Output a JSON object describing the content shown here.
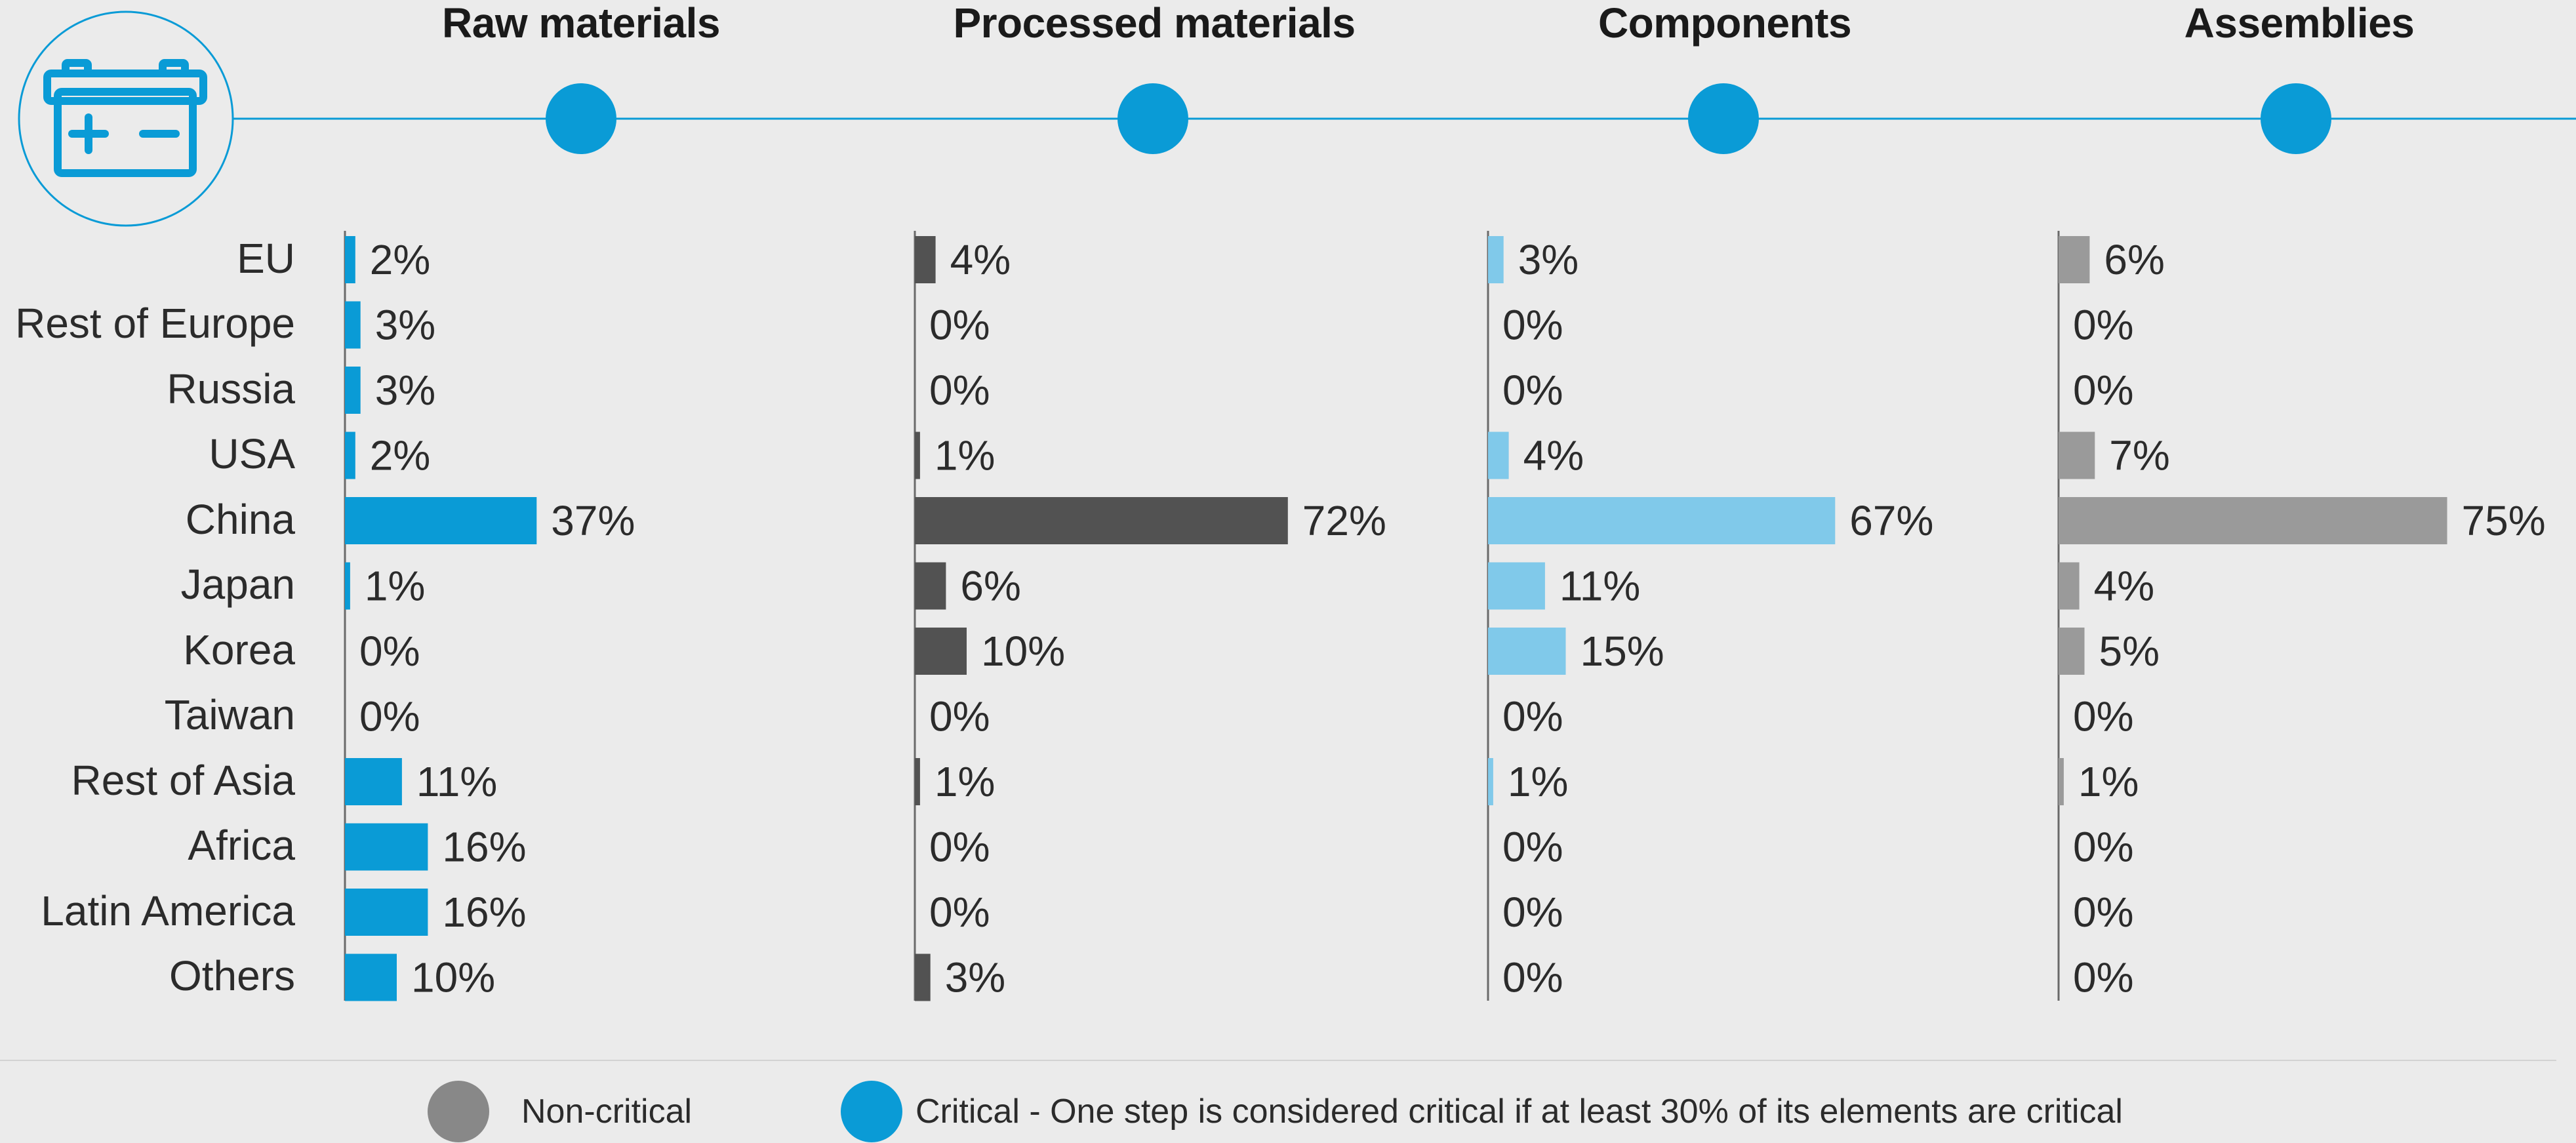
{
  "stages": [
    {
      "title": "Raw materials",
      "color": "#0a9bd6"
    },
    {
      "title": "Processed materials",
      "color": "#525252"
    },
    {
      "title": "Components",
      "color": "#80c9ea"
    },
    {
      "title": "Assemblies",
      "color": "#9a9a9a"
    }
  ],
  "icon": "battery-icon",
  "accent_color": "#0a9bd6",
  "chart_data": {
    "type": "bar",
    "orientation": "horizontal",
    "categories": [
      "EU",
      "Rest of Europe",
      "Russia",
      "USA",
      "China",
      "Japan",
      "Korea",
      "Taiwan",
      "Rest of Asia",
      "Africa",
      "Latin America",
      "Others"
    ],
    "series": [
      {
        "name": "Raw materials",
        "values": [
          2,
          3,
          3,
          2,
          37,
          1,
          0,
          0,
          11,
          16,
          16,
          10
        ]
      },
      {
        "name": "Processed materials",
        "values": [
          4,
          0,
          0,
          1,
          72,
          6,
          10,
          0,
          1,
          0,
          0,
          3
        ]
      },
      {
        "name": "Components",
        "values": [
          3,
          0,
          0,
          4,
          67,
          11,
          15,
          0,
          1,
          0,
          0,
          0
        ]
      },
      {
        "name": "Assemblies",
        "values": [
          6,
          0,
          0,
          7,
          75,
          4,
          5,
          0,
          1,
          0,
          0,
          0
        ]
      }
    ],
    "value_suffix": "%",
    "xlim": [
      0,
      75
    ]
  },
  "legend": {
    "non_critical": {
      "label": "Non-critical",
      "color": "#888888"
    },
    "critical": {
      "label": "Critical - One step is considered critical if at least 30% of its elements are critical",
      "color": "#0a9bd6"
    }
  }
}
